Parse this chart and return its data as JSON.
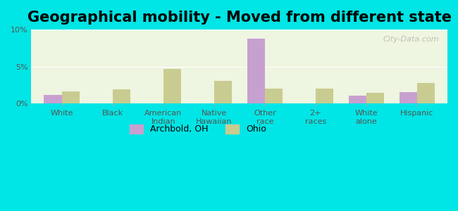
{
  "title": "Geographical mobility - Moved from different state",
  "categories": [
    "White",
    "Black",
    "American\nIndian",
    "Native\nHawaiian",
    "Other\nrace",
    "2+\nraces",
    "White\nalone",
    "Hispanic"
  ],
  "archbold_values": [
    1.2,
    0.0,
    0.0,
    0.0,
    8.8,
    0.0,
    1.1,
    1.5
  ],
  "ohio_values": [
    1.6,
    1.9,
    4.7,
    3.1,
    2.0,
    2.0,
    1.4,
    2.8
  ],
  "archbold_color": "#c8a0d0",
  "ohio_color": "#c8cc90",
  "ylim": [
    0,
    10
  ],
  "yticks": [
    0,
    5,
    10
  ],
  "ytick_labels": [
    "0%",
    "5%",
    "10%"
  ],
  "bg_color": "#eef5e0",
  "outer_bg": "#00e5e5",
  "bar_width": 0.35,
  "title_fontsize": 15,
  "legend_archbold": "Archbold, OH",
  "legend_ohio": "Ohio"
}
